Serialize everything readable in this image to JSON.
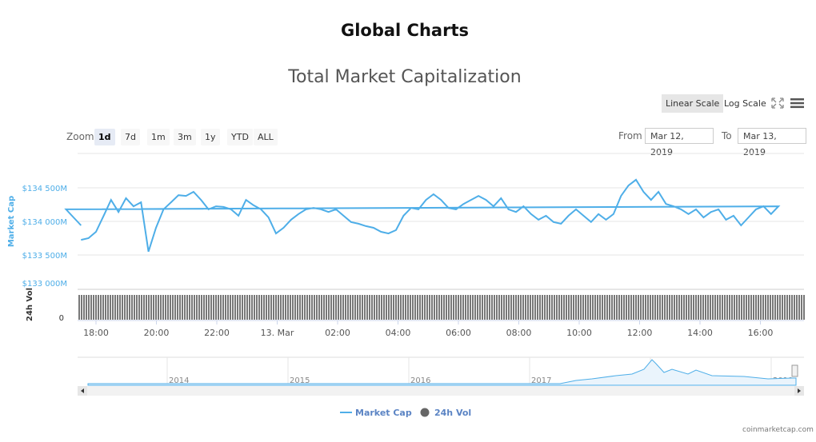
{
  "page_title": "Global Charts",
  "toolbar": {
    "linear_scale": "Linear Scale",
    "log_scale": "Log Scale",
    "fullscreen_icon": "expand-icon",
    "menu_icon": "hamburger-icon",
    "zoom_label": "Zoom",
    "zoom_options": [
      "1d",
      "7d",
      "1m",
      "3m",
      "1y",
      "YTD",
      "ALL"
    ],
    "zoom_selected": "1d",
    "from_label": "From",
    "from_value": "Mar 12, 2019",
    "to_label": "To",
    "to_value": "Mar 13, 2019"
  },
  "legend": {
    "market_cap": "Market Cap",
    "vol": "24h Vol"
  },
  "credit": "coinmarketcap.com",
  "colors": {
    "market_cap": "#4eaee8",
    "volume": "#666666",
    "grid": "#e6e6e6"
  },
  "chart_data": {
    "type": "line",
    "title": "Total Market Capitalization",
    "ylabel": "Market Cap",
    "y_ticks": [
      "$133 000M",
      "$133 500M",
      "$134 000M",
      "$134 500M"
    ],
    "ylim": [
      133000,
      134750
    ],
    "x_ticks": [
      "18:00",
      "20:00",
      "22:00",
      "13. Mar",
      "02:00",
      "04:00",
      "06:00",
      "08:00",
      "10:00",
      "12:00",
      "14:00",
      "16:00"
    ],
    "series": [
      {
        "name": "Market Cap",
        "unit": "USD millions",
        "x": [
          "17:30",
          "17:45",
          "18:00",
          "18:15",
          "18:30",
          "18:45",
          "19:00",
          "19:15",
          "19:30",
          "19:45",
          "20:00",
          "20:15",
          "20:30",
          "20:45",
          "21:00",
          "21:15",
          "21:30",
          "21:45",
          "22:00",
          "22:15",
          "22:30",
          "22:45",
          "23:00",
          "23:15",
          "23:30",
          "23:45",
          "00:00",
          "00:15",
          "00:30",
          "00:45",
          "01:00",
          "01:15",
          "01:30",
          "01:45",
          "02:00",
          "02:15",
          "02:30",
          "02:45",
          "03:00",
          "03:15",
          "03:30",
          "03:45",
          "04:00",
          "04:15",
          "04:30",
          "04:45",
          "05:00",
          "05:15",
          "05:30",
          "05:45",
          "06:00",
          "06:15",
          "06:30",
          "06:45",
          "07:00",
          "07:15",
          "07:30",
          "07:45",
          "08:00",
          "08:15",
          "08:30",
          "08:45",
          "09:00",
          "09:15",
          "09:30",
          "09:45",
          "10:00",
          "10:15",
          "10:30",
          "10:45",
          "11:00",
          "11:15",
          "11:30",
          "11:45",
          "12:00",
          "12:15",
          "12:30",
          "12:45",
          "13:00",
          "13:15",
          "13:30",
          "13:45",
          "14:00",
          "14:15",
          "14:30",
          "14:45",
          "15:00",
          "15:15",
          "15:30",
          "15:45",
          "16:00",
          "16:15",
          "16:30",
          "16:45",
          "17:00",
          "17:15",
          "17:30"
        ],
        "values": [
          133725,
          133750,
          133845,
          134080,
          134320,
          134140,
          134345,
          134225,
          134285,
          133550,
          133905,
          134180,
          134285,
          134390,
          134380,
          134440,
          134320,
          134180,
          134225,
          134215,
          134180,
          134085,
          134320,
          134240,
          134180,
          134060,
          133820,
          133905,
          134025,
          134110,
          134180,
          134200,
          134180,
          134140,
          134180,
          134085,
          133990,
          133965,
          133930,
          133905,
          133845,
          133820,
          133870,
          134085,
          134200,
          134180,
          134320,
          134405,
          134320,
          134200,
          134180,
          134260,
          134320,
          134380,
          134320,
          134225,
          134345,
          134180,
          134140,
          134225,
          134110,
          134025,
          134085,
          133990,
          133965,
          134085,
          134180,
          134085,
          133990,
          134110,
          134025,
          134110,
          134380,
          134535,
          134620,
          134440,
          134320,
          134440,
          134260,
          134225,
          134180,
          134110,
          134180,
          134060,
          134140,
          134180,
          134025,
          134085,
          133940,
          134060,
          134180,
          134225,
          134110,
          134225,
          134180,
          134060,
          133940
        ]
      }
    ],
    "volume": {
      "name": "24h Vol",
      "ylabel": "24h Vol",
      "y_ticks": [
        "0"
      ]
    },
    "navigator": {
      "x_ticks": [
        "2014",
        "2015",
        "2016",
        "2017",
        "2018",
        "2019"
      ]
    }
  }
}
